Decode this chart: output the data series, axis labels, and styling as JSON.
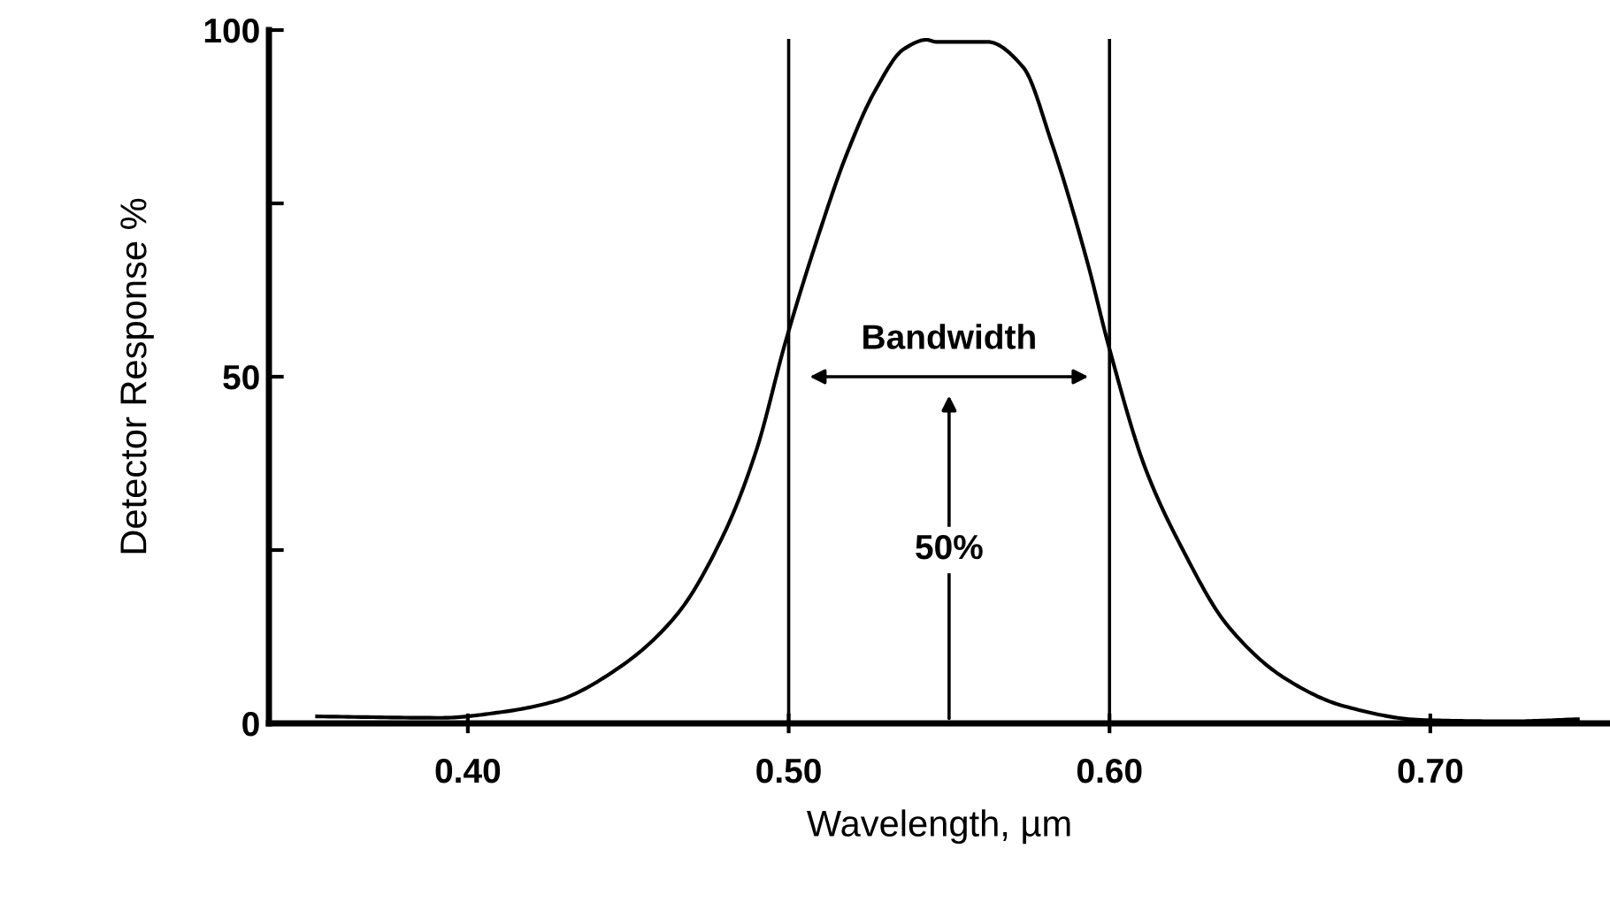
{
  "chart_data": {
    "type": "line",
    "xlabel": "Wavelength, µm",
    "ylabel": "Detector Response %",
    "x": [
      0.353,
      0.392,
      0.41,
      0.428,
      0.447,
      0.465,
      0.48,
      0.49,
      0.499,
      0.509,
      0.518,
      0.527,
      0.536,
      0.543,
      0.546,
      0.562,
      0.573,
      0.582,
      0.593,
      0.6,
      0.611,
      0.622,
      0.637,
      0.655,
      0.673,
      0.697,
      0.725,
      0.746
    ],
    "series": [
      {
        "color": "#000000",
        "values": [
          1.0,
          0.8,
          1.6,
          3.3,
          8,
          15.6,
          27.5,
          39.5,
          55,
          70,
          82,
          91.3,
          97.3,
          98.6,
          98.3,
          98.3,
          94.7,
          83.7,
          66.7,
          54,
          37,
          25.8,
          14,
          6.4,
          2.5,
          0.5,
          0.3,
          0.6
        ]
      }
    ],
    "xlim": [
      0.338,
      0.756
    ],
    "ylim": [
      0,
      100
    ],
    "xticks": [
      {
        "value": 0.4,
        "label": "0.40"
      },
      {
        "value": 0.5,
        "label": "0.50"
      },
      {
        "value": 0.6,
        "label": "0.60"
      },
      {
        "value": 0.7,
        "label": "0.70"
      }
    ],
    "yticks": [
      0,
      {
        "value": 25,
        "label": null
      },
      50,
      {
        "value": 75,
        "label": null
      },
      100
    ],
    "ref_lines": [
      {
        "axis": "x",
        "value": 0.5,
        "color": "#000000"
      },
      {
        "axis": "x",
        "value": 0.6,
        "color": "#000000"
      }
    ],
    "annotations": [
      "Bandwidth",
      "50%"
    ],
    "grid": false,
    "marker": "none",
    "line_style": "solid"
  }
}
